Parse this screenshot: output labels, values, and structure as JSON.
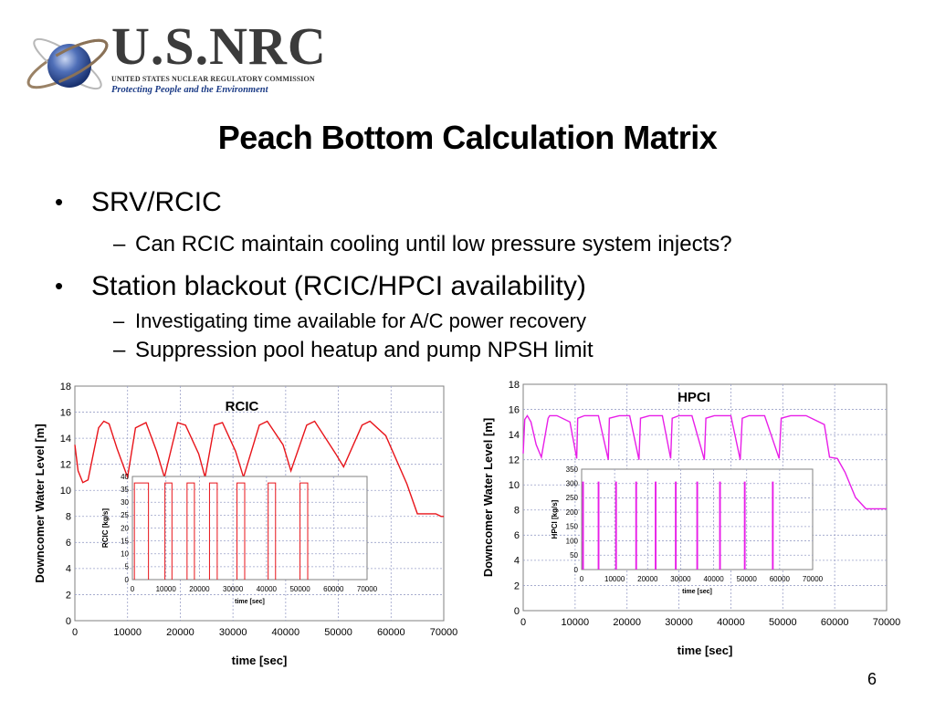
{
  "header": {
    "logo_main": "U.S.NRC",
    "logo_line": "UNITED STATES NUCLEAR REGULATORY COMMISSION",
    "logo_tagline": "Protecting People and the Environment",
    "logo_icon": "globe-orbit-icon"
  },
  "title": "Peach Bottom Calculation Matrix",
  "bullets": [
    {
      "text": "SRV/RCIC",
      "sub": [
        "Can RCIC maintain cooling until low pressure system injects?"
      ]
    },
    {
      "text": "Station blackout (RCIC/HPCI availability)",
      "sub": [
        "Investigating time available for A/C power recovery",
        "Suppression pool heatup and pump NPSH limit"
      ]
    }
  ],
  "bullet_symbol": "•",
  "dash_symbol": "–",
  "page_number": "6",
  "colors": {
    "rcic": "#e8141a",
    "hpci": "#e81ee8",
    "grid": "#9aa0c8",
    "logo_blue": "#1b3b86"
  },
  "chart_data": [
    {
      "type": "line",
      "title": "RCIC",
      "xlabel": "time [sec]",
      "ylabel": "Downcomer Water Level [m]",
      "xlim": [
        0,
        70000
      ],
      "ylim": [
        0,
        18
      ],
      "xticks": [
        0,
        10000,
        20000,
        30000,
        40000,
        50000,
        60000,
        70000
      ],
      "yticks": [
        0,
        2,
        4,
        6,
        8,
        10,
        12,
        14,
        16,
        18
      ],
      "grid": true,
      "series": [
        {
          "color": "#e8141a",
          "x": [
            0,
            600,
            1500,
            2500,
            3500,
            4500,
            5500,
            6500,
            8000,
            10000,
            11500,
            13500,
            15500,
            17000,
            19500,
            21000,
            23500,
            24700,
            26500,
            28000,
            30500,
            32000,
            35000,
            36500,
            39500,
            41000,
            44000,
            45500,
            49500,
            51000,
            54500,
            56000,
            59000,
            63000,
            65000,
            67000,
            68500,
            69500,
            70000
          ],
          "y": [
            13.5,
            11.5,
            10.6,
            10.8,
            12.8,
            14.8,
            15.3,
            15.1,
            13.2,
            11.0,
            14.8,
            15.2,
            13.0,
            11.0,
            15.2,
            15.0,
            12.8,
            11.0,
            15.0,
            15.2,
            13.0,
            11.0,
            15.0,
            15.3,
            13.5,
            11.5,
            15.0,
            15.3,
            12.8,
            11.8,
            15.0,
            15.3,
            14.2,
            10.5,
            8.2,
            8.2,
            8.2,
            8.0,
            8.0
          ]
        }
      ],
      "inset": {
        "ylabel": "RCIC [kg/s]",
        "xlabel": "time [sec]",
        "xlim": [
          0,
          70000
        ],
        "ylim": [
          0,
          40
        ],
        "xticks": [
          0,
          10000,
          20000,
          30000,
          40000,
          50000,
          60000,
          70000
        ],
        "yticks": [
          0,
          5,
          10,
          15,
          20,
          25,
          30,
          35,
          40
        ],
        "flow": 37.5,
        "pulses": [
          [
            600,
            4800
          ],
          [
            9700,
            11800
          ],
          [
            16300,
            18500
          ],
          [
            23000,
            25300
          ],
          [
            31200,
            33500
          ],
          [
            40500,
            42700
          ],
          [
            50000,
            52300
          ]
        ]
      }
    },
    {
      "type": "line",
      "title": "HPCI",
      "xlabel": "time [sec]",
      "ylabel": "Downcomer Water Level [m]",
      "xlim": [
        0,
        70000
      ],
      "ylim": [
        0,
        18
      ],
      "xticks": [
        0,
        10000,
        20000,
        30000,
        40000,
        50000,
        60000,
        70000
      ],
      "yticks": [
        0,
        2,
        4,
        6,
        8,
        10,
        12,
        14,
        16,
        18
      ],
      "grid": true,
      "series": [
        {
          "color": "#e81ee8",
          "x": [
            0,
            300,
            800,
            1500,
            2500,
            3500,
            4800,
            5100,
            6500,
            9000,
            10300,
            10500,
            11800,
            14500,
            16400,
            16600,
            18500,
            20500,
            22300,
            22600,
            24300,
            26800,
            28400,
            28700,
            30000,
            32500,
            34900,
            35200,
            36800,
            40000,
            41800,
            42200,
            43500,
            46500,
            49300,
            49700,
            51500,
            54500,
            58000,
            59000,
            60500,
            62000,
            64000,
            66000,
            70000
          ],
          "y": [
            12.5,
            15.2,
            15.5,
            15.0,
            13.2,
            12.2,
            15.3,
            15.5,
            15.5,
            15.0,
            12.1,
            15.3,
            15.5,
            15.5,
            12.0,
            15.3,
            15.5,
            15.5,
            12.0,
            15.3,
            15.5,
            15.5,
            12.1,
            15.3,
            15.5,
            15.5,
            12.0,
            15.3,
            15.5,
            15.5,
            12.0,
            15.3,
            15.5,
            15.5,
            12.1,
            15.3,
            15.5,
            15.5,
            14.8,
            12.2,
            12.1,
            11.0,
            9.0,
            8.1,
            8.1
          ]
        }
      ],
      "inset": {
        "ylabel": "HPCI [kg/s]",
        "xlabel": "time [sec]",
        "xlim": [
          0,
          70000
        ],
        "ylim": [
          0,
          350
        ],
        "xticks": [
          0,
          10000,
          20000,
          30000,
          40000,
          50000,
          60000,
          70000
        ],
        "yticks": [
          0,
          50,
          100,
          150,
          200,
          250,
          300,
          350
        ],
        "flow": 305,
        "pulses": [
          [
            300,
            550
          ],
          [
            5000,
            5250
          ],
          [
            10300,
            10550
          ],
          [
            16400,
            16650
          ],
          [
            22300,
            22550
          ],
          [
            28400,
            28650
          ],
          [
            34900,
            35150
          ],
          [
            41800,
            42050
          ],
          [
            49300,
            49550
          ],
          [
            57800,
            58050
          ]
        ]
      }
    }
  ]
}
